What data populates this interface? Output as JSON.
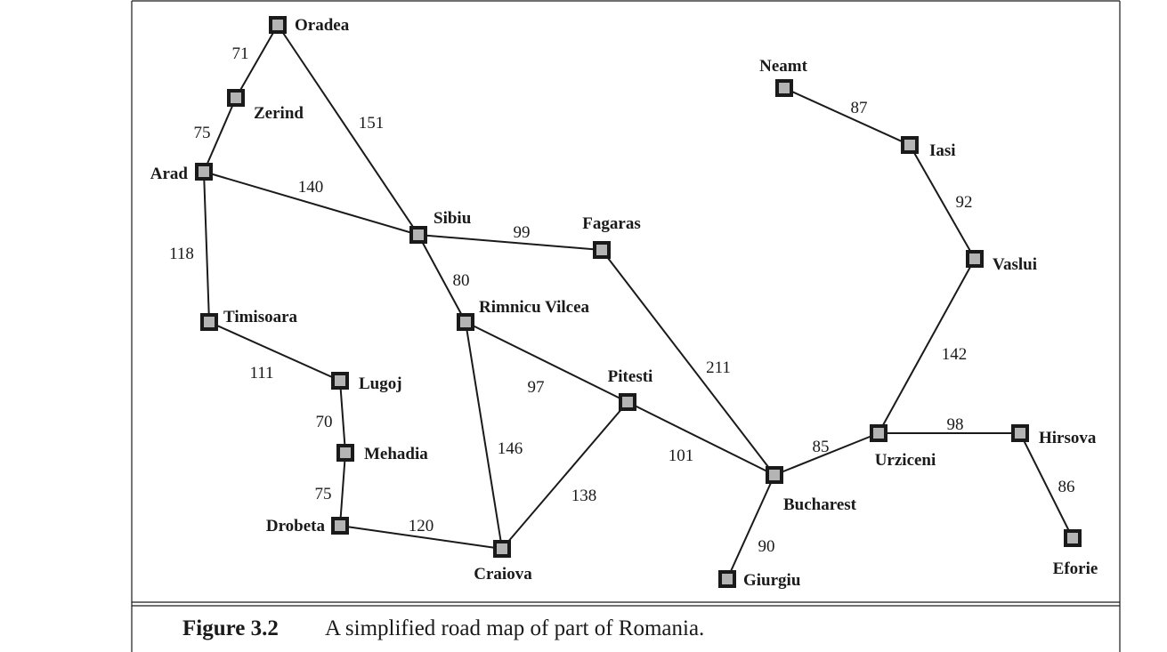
{
  "figure": {
    "caption_number": "Figure 3.2",
    "caption_text": "A simplified road map of part of Romania."
  },
  "cities": [
    {
      "id": "oradea",
      "name": "Oradea"
    },
    {
      "id": "zerind",
      "name": "Zerind"
    },
    {
      "id": "arad",
      "name": "Arad"
    },
    {
      "id": "timisoara",
      "name": "Timisoara"
    },
    {
      "id": "lugoj",
      "name": "Lugoj"
    },
    {
      "id": "mehadia",
      "name": "Mehadia"
    },
    {
      "id": "drobeta",
      "name": "Drobeta"
    },
    {
      "id": "craiova",
      "name": "Craiova"
    },
    {
      "id": "sibiu",
      "name": "Sibiu"
    },
    {
      "id": "rimnicu",
      "name": "Rimnicu Vilcea"
    },
    {
      "id": "fagaras",
      "name": "Fagaras"
    },
    {
      "id": "pitesti",
      "name": "Pitesti"
    },
    {
      "id": "bucharest",
      "name": "Bucharest"
    },
    {
      "id": "giurgiu",
      "name": "Giurgiu"
    },
    {
      "id": "urziceni",
      "name": "Urziceni"
    },
    {
      "id": "hirsova",
      "name": "Hirsova"
    },
    {
      "id": "eforie",
      "name": "Eforie"
    },
    {
      "id": "vaslui",
      "name": "Vaslui"
    },
    {
      "id": "iasi",
      "name": "Iasi"
    },
    {
      "id": "neamt",
      "name": "Neamt"
    }
  ],
  "roads": [
    {
      "from": "oradea",
      "to": "zerind",
      "distance": "71"
    },
    {
      "from": "zerind",
      "to": "arad",
      "distance": "75"
    },
    {
      "from": "oradea",
      "to": "sibiu",
      "distance": "151"
    },
    {
      "from": "arad",
      "to": "sibiu",
      "distance": "140"
    },
    {
      "from": "arad",
      "to": "timisoara",
      "distance": "118"
    },
    {
      "from": "timisoara",
      "to": "lugoj",
      "distance": "111"
    },
    {
      "from": "lugoj",
      "to": "mehadia",
      "distance": "70"
    },
    {
      "from": "mehadia",
      "to": "drobeta",
      "distance": "75"
    },
    {
      "from": "drobeta",
      "to": "craiova",
      "distance": "120"
    },
    {
      "from": "sibiu",
      "to": "fagaras",
      "distance": "99"
    },
    {
      "from": "sibiu",
      "to": "rimnicu",
      "distance": "80"
    },
    {
      "from": "rimnicu",
      "to": "pitesti",
      "distance": "97"
    },
    {
      "from": "rimnicu",
      "to": "craiova",
      "distance": "146"
    },
    {
      "from": "craiova",
      "to": "pitesti",
      "distance": "138"
    },
    {
      "from": "pitesti",
      "to": "bucharest",
      "distance": "101"
    },
    {
      "from": "fagaras",
      "to": "bucharest",
      "distance": "211"
    },
    {
      "from": "bucharest",
      "to": "giurgiu",
      "distance": "90"
    },
    {
      "from": "bucharest",
      "to": "urziceni",
      "distance": "85"
    },
    {
      "from": "urziceni",
      "to": "hirsova",
      "distance": "98"
    },
    {
      "from": "hirsova",
      "to": "eforie",
      "distance": "86"
    },
    {
      "from": "urziceni",
      "to": "vaslui",
      "distance": "142"
    },
    {
      "from": "vaslui",
      "to": "iasi",
      "distance": "92"
    },
    {
      "from": "iasi",
      "to": "neamt",
      "distance": "87"
    }
  ],
  "colors": {
    "ink": "#1a1a1a",
    "node_fill": "#b4b4b4",
    "background": "#ffffff"
  }
}
